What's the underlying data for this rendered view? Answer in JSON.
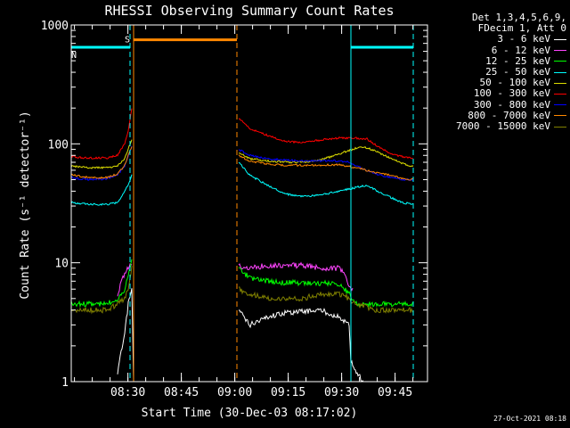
{
  "chart_data": {
    "type": "line",
    "title": "RHESSI Observing Summary Count Rates",
    "xlabel": "Start Time (30-Dec-03 08:17:02)",
    "ylabel": "Count Rate (s⁻¹ detector⁻¹)",
    "yscale": "log",
    "ylim": [
      1,
      1000
    ],
    "y_ticks": [
      {
        "value": 1,
        "label": "1"
      },
      {
        "value": 10,
        "label": "10"
      },
      {
        "value": 100,
        "label": "100"
      },
      {
        "value": 1000,
        "label": "1000"
      }
    ],
    "xlim_minutes": [
      0,
      100
    ],
    "x_ticks": [
      {
        "minutes": 15.9,
        "label": "08:30"
      },
      {
        "minutes": 30.9,
        "label": "08:45"
      },
      {
        "minutes": 45.9,
        "label": "09:00"
      },
      {
        "minutes": 60.9,
        "label": "09:15"
      },
      {
        "minutes": 75.9,
        "label": "09:30"
      },
      {
        "minutes": 90.9,
        "label": "09:45"
      }
    ],
    "legend_header": [
      "Det 1,3,4,5,6,9,",
      "FDecim 1, Att 0"
    ],
    "series": [
      {
        "name": "3 - 6 keV",
        "color": "#ffffff",
        "points": [
          [
            0,
            null
          ],
          [
            12,
            null
          ],
          [
            13,
            1.2
          ],
          [
            15,
            2.5
          ],
          [
            16,
            4.5
          ],
          [
            17,
            6
          ],
          [
            17.5,
            1
          ],
          [
            46.5,
            null
          ],
          [
            47,
            4
          ],
          [
            50,
            3
          ],
          [
            55,
            3.5
          ],
          [
            60,
            3.8
          ],
          [
            65,
            3.9
          ],
          [
            70,
            4
          ],
          [
            75,
            3.5
          ],
          [
            78,
            3
          ],
          [
            78.5,
            1.5
          ],
          [
            80,
            1.2
          ],
          [
            82,
            1
          ],
          [
            84,
            null
          ]
        ]
      },
      {
        "name": "6 - 12 keV",
        "color": "#ff44ff",
        "points": [
          [
            0,
            null
          ],
          [
            13,
            5
          ],
          [
            14,
            7
          ],
          [
            15,
            8
          ],
          [
            16,
            9
          ],
          [
            17,
            10
          ],
          [
            17.5,
            null
          ],
          [
            46.5,
            null
          ],
          [
            47,
            9.5
          ],
          [
            50,
            9
          ],
          [
            55,
            9.5
          ],
          [
            60,
            9.5
          ],
          [
            65,
            9.5
          ],
          [
            70,
            9
          ],
          [
            75,
            9
          ],
          [
            77,
            8
          ],
          [
            78,
            6
          ],
          [
            79,
            6
          ],
          [
            80,
            null
          ]
        ]
      },
      {
        "name": "12 - 25 keV",
        "color": "#00ff00",
        "points": [
          [
            0,
            4.5
          ],
          [
            5,
            4.5
          ],
          [
            10,
            4.5
          ],
          [
            13,
            5
          ],
          [
            15,
            6
          ],
          [
            16,
            8
          ],
          [
            17,
            11
          ],
          [
            17.5,
            null
          ],
          [
            46.5,
            null
          ],
          [
            47,
            9
          ],
          [
            50,
            7.5
          ],
          [
            55,
            7
          ],
          [
            60,
            6.8
          ],
          [
            65,
            6.8
          ],
          [
            70,
            6.7
          ],
          [
            75,
            6.7
          ],
          [
            78,
            5.5
          ],
          [
            80,
            4.5
          ],
          [
            85,
            4.5
          ],
          [
            90,
            4.5
          ],
          [
            96,
            4.5
          ]
        ]
      },
      {
        "name": "25 - 50 keV",
        "color": "#00ffff",
        "points": [
          [
            0,
            32
          ],
          [
            5,
            31
          ],
          [
            10,
            31
          ],
          [
            13,
            32
          ],
          [
            15,
            40
          ],
          [
            16,
            45
          ],
          [
            17,
            55
          ],
          [
            17.5,
            null
          ],
          [
            46.5,
            null
          ],
          [
            47,
            70
          ],
          [
            50,
            55
          ],
          [
            55,
            45
          ],
          [
            60,
            38
          ],
          [
            65,
            36
          ],
          [
            70,
            37
          ],
          [
            75,
            40
          ],
          [
            80,
            43
          ],
          [
            83,
            45
          ],
          [
            86,
            40
          ],
          [
            90,
            35
          ],
          [
            93,
            32
          ],
          [
            96,
            31
          ]
        ]
      },
      {
        "name": "50 - 100 keV",
        "color": "#dddd00",
        "points": [
          [
            0,
            65
          ],
          [
            5,
            63
          ],
          [
            10,
            63
          ],
          [
            13,
            65
          ],
          [
            15,
            75
          ],
          [
            16,
            90
          ],
          [
            17,
            110
          ],
          [
            17.5,
            null
          ],
          [
            46.5,
            null
          ],
          [
            47,
            85
          ],
          [
            50,
            75
          ],
          [
            55,
            72
          ],
          [
            60,
            70
          ],
          [
            65,
            70
          ],
          [
            70,
            73
          ],
          [
            75,
            82
          ],
          [
            80,
            92
          ],
          [
            82,
            95
          ],
          [
            85,
            88
          ],
          [
            90,
            75
          ],
          [
            93,
            68
          ],
          [
            96,
            65
          ]
        ]
      },
      {
        "name": "100 - 300 keV",
        "color": "#ff0000",
        "points": [
          [
            0,
            78
          ],
          [
            5,
            76
          ],
          [
            10,
            76
          ],
          [
            13,
            80
          ],
          [
            15,
            100
          ],
          [
            16,
            130
          ],
          [
            17,
            200
          ],
          [
            17.5,
            null
          ],
          [
            46.5,
            null
          ],
          [
            47,
            165
          ],
          [
            50,
            135
          ],
          [
            55,
            118
          ],
          [
            60,
            105
          ],
          [
            65,
            102
          ],
          [
            70,
            108
          ],
          [
            75,
            112
          ],
          [
            80,
            112
          ],
          [
            83,
            110
          ],
          [
            86,
            95
          ],
          [
            90,
            82
          ],
          [
            93,
            78
          ],
          [
            96,
            76
          ]
        ]
      },
      {
        "name": "300 - 800 keV",
        "color": "#0000ff",
        "points": [
          [
            0,
            52
          ],
          [
            5,
            50
          ],
          [
            10,
            51
          ],
          [
            13,
            55
          ],
          [
            15,
            65
          ],
          [
            16,
            80
          ],
          [
            17,
            95
          ],
          [
            17.5,
            null
          ],
          [
            46.5,
            null
          ],
          [
            47,
            90
          ],
          [
            50,
            80
          ],
          [
            55,
            75
          ],
          [
            60,
            73
          ],
          [
            65,
            72
          ],
          [
            70,
            72
          ],
          [
            75,
            72
          ],
          [
            78,
            70
          ],
          [
            80,
            65
          ],
          [
            83,
            60
          ],
          [
            86,
            55
          ],
          [
            90,
            52
          ],
          [
            93,
            50
          ],
          [
            96,
            50
          ]
        ]
      },
      {
        "name": "800 - 7000 keV",
        "color": "#ff8800",
        "points": [
          [
            0,
            55
          ],
          [
            5,
            52
          ],
          [
            10,
            52
          ],
          [
            13,
            56
          ],
          [
            15,
            66
          ],
          [
            16,
            80
          ],
          [
            17,
            95
          ],
          [
            17.5,
            null
          ],
          [
            46.5,
            null
          ],
          [
            47,
            80
          ],
          [
            50,
            72
          ],
          [
            55,
            68
          ],
          [
            60,
            66
          ],
          [
            65,
            66
          ],
          [
            70,
            66
          ],
          [
            75,
            67
          ],
          [
            80,
            63
          ],
          [
            85,
            58
          ],
          [
            90,
            54
          ],
          [
            93,
            51
          ],
          [
            96,
            50
          ]
        ]
      },
      {
        "name": "7000 - 15000 keV",
        "color": "#808000",
        "points": [
          [
            0,
            4
          ],
          [
            5,
            4
          ],
          [
            10,
            4
          ],
          [
            13,
            4.5
          ],
          [
            15,
            5
          ],
          [
            16,
            6
          ],
          [
            17,
            9
          ],
          [
            17.5,
            null
          ],
          [
            46.5,
            null
          ],
          [
            47,
            6
          ],
          [
            50,
            5.5
          ],
          [
            55,
            5
          ],
          [
            60,
            5
          ],
          [
            65,
            5
          ],
          [
            70,
            5.5
          ],
          [
            75,
            5.5
          ],
          [
            78,
            5
          ],
          [
            80,
            4.5
          ],
          [
            85,
            4
          ],
          [
            90,
            4
          ],
          [
            96,
            4
          ]
        ]
      }
    ],
    "flag_annotations": [
      {
        "label": "S",
        "color": "#ff8800",
        "value": 750,
        "x_start_minutes": 17.5,
        "x_end_minutes": 46.5
      },
      {
        "label": "N",
        "color": "#00ffff",
        "value": 650,
        "x_start_minutes": 0,
        "x_end_minutes": 16.5
      },
      {
        "label": "",
        "color": "#00ffff",
        "value": 650,
        "x_start_minutes": 78.5,
        "x_end_minutes": 96
      }
    ],
    "vertical_markers": [
      {
        "minutes": 16.5,
        "color": "#00ffff",
        "style": "dashed"
      },
      {
        "minutes": 17.5,
        "color": "#ff8800",
        "style": "solid"
      },
      {
        "minutes": 46.5,
        "color": "#ff8800",
        "style": "dashed"
      },
      {
        "minutes": 78.5,
        "color": "#00ffff",
        "style": "solid"
      },
      {
        "minutes": 96,
        "color": "#00ffff",
        "style": "dashed"
      }
    ],
    "footer": "27-Oct-2021 08:18"
  }
}
